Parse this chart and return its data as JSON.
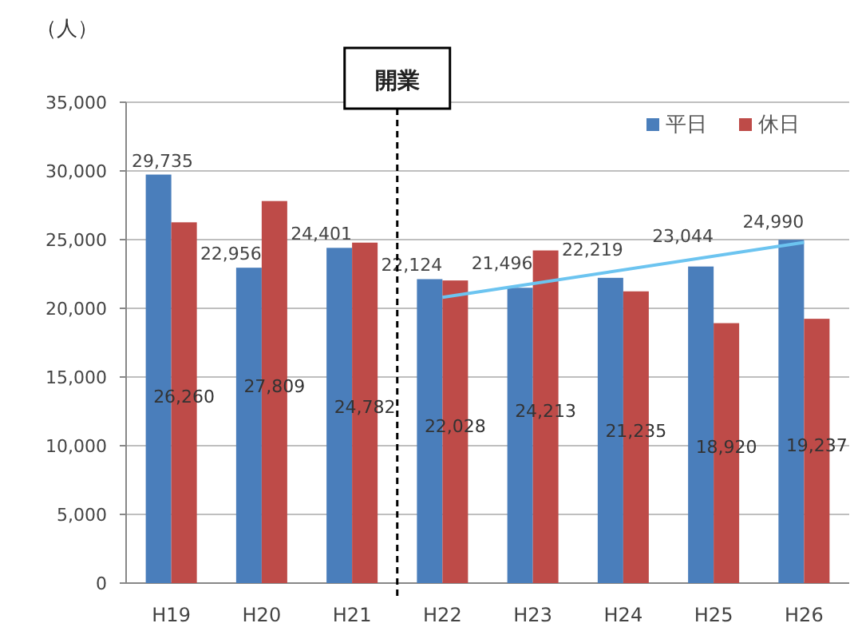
{
  "chart_data": {
    "type": "bar",
    "ylabel": "（人）",
    "categories": [
      "H19",
      "H20",
      "H21",
      "H22",
      "H23",
      "H24",
      "H25",
      "H26"
    ],
    "series": [
      {
        "name": "平日",
        "color": "#4a7ebb",
        "values": [
          29735,
          22956,
          24401,
          22124,
          21496,
          22219,
          23044,
          24990
        ],
        "value_labels": [
          "29,735",
          "22,956",
          "24,401",
          "22,124",
          "21,496",
          "22,219",
          "23,044",
          "24,990"
        ]
      },
      {
        "name": "休日",
        "color": "#be4b48",
        "values": [
          26260,
          27809,
          24782,
          22028,
          24213,
          21235,
          18920,
          19237
        ],
        "value_labels": [
          "26,260",
          "27,809",
          "24,782",
          "22,028",
          "24,213",
          "21,235",
          "18,920",
          "19,237"
        ]
      },
      {
        "type": "line",
        "color": "#6cc4f0",
        "x": [
          "H22",
          "H26"
        ],
        "values": [
          20800,
          24800
        ]
      }
    ],
    "ylim": [
      0,
      35000
    ],
    "yticks": [
      {
        "value": 0,
        "label": "0"
      },
      {
        "value": 5000,
        "label": "5,000"
      },
      {
        "value": 10000,
        "label": "10,000"
      },
      {
        "value": 15000,
        "label": "15,000"
      },
      {
        "value": 20000,
        "label": "20,000"
      },
      {
        "value": 25000,
        "label": "25,000"
      },
      {
        "value": 30000,
        "label": "30,000"
      },
      {
        "value": 35000,
        "label": "35,000"
      }
    ],
    "grid": "y",
    "legend": "top right",
    "ref_lines": [
      {
        "axis": "x",
        "value": "H22",
        "label": "開業",
        "line_style": "dashed",
        "color": "#000000"
      }
    ]
  }
}
